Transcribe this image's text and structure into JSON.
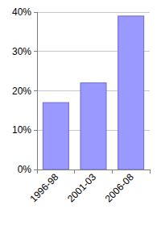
{
  "chart_data": {
    "type": "bar",
    "categories": [
      "1996-98",
      "2001-03",
      "2006-08"
    ],
    "values": [
      17,
      22,
      39
    ],
    "color": "#9999ff",
    "ylim": [
      0,
      40
    ],
    "yticks": [
      {
        "value": 0,
        "label": "0%"
      },
      {
        "value": 10,
        "label": "10%"
      },
      {
        "value": 20,
        "label": "20%"
      },
      {
        "value": 30,
        "label": "30%"
      },
      {
        "value": 40,
        "label": "40%"
      }
    ],
    "grid": true
  }
}
